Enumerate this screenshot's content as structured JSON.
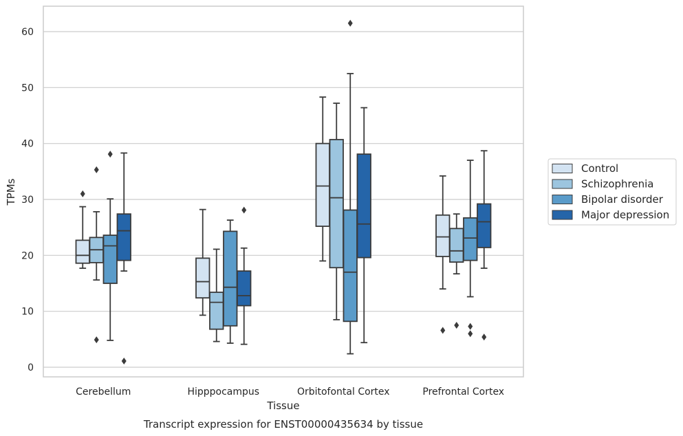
{
  "chart_data": {
    "type": "box",
    "title": "",
    "caption": "Transcript expression for ENST00000435634 by tissue",
    "xlabel": "Tissue",
    "ylabel": "TPMs",
    "ylim": [
      -2,
      65
    ],
    "yticks": [
      0,
      10,
      20,
      30,
      40,
      50,
      60
    ],
    "grid": "horizontal",
    "legend_position": "right",
    "categories": [
      "Cerebellum",
      "Hipppocampus",
      "Orbitofontal Cortex",
      "Prefrontal Cortex"
    ],
    "series": [
      {
        "name": "Control",
        "color": "#d3e3f2",
        "boxes": [
          {
            "whislo": 17.7,
            "q1": 18.6,
            "med": 20.0,
            "q3": 22.7,
            "whishi": 28.7,
            "fliers": [
              31.0
            ]
          },
          {
            "whislo": 9.3,
            "q1": 12.4,
            "med": 15.3,
            "q3": 19.5,
            "whishi": 28.2,
            "fliers": []
          },
          {
            "whislo": 19.0,
            "q1": 25.2,
            "med": 32.4,
            "q3": 40.0,
            "whishi": 48.3,
            "fliers": []
          },
          {
            "whislo": 14.0,
            "q1": 19.8,
            "med": 23.3,
            "q3": 27.2,
            "whishi": 34.2,
            "fliers": [
              6.6
            ]
          }
        ]
      },
      {
        "name": "Schizophrenia",
        "color": "#9cc5df",
        "boxes": [
          {
            "whislo": 15.6,
            "q1": 18.7,
            "med": 21.0,
            "q3": 23.2,
            "whishi": 27.8,
            "fliers": [
              35.3,
              4.9
            ]
          },
          {
            "whislo": 4.6,
            "q1": 6.8,
            "med": 11.6,
            "q3": 13.4,
            "whishi": 21.1,
            "fliers": []
          },
          {
            "whislo": 8.5,
            "q1": 17.8,
            "med": 30.3,
            "q3": 40.7,
            "whishi": 47.2,
            "fliers": []
          },
          {
            "whislo": 16.7,
            "q1": 18.8,
            "med": 20.8,
            "q3": 24.8,
            "whishi": 27.4,
            "fliers": [
              7.5
            ]
          }
        ]
      },
      {
        "name": "Bipolar disorder",
        "color": "#5a9bc9",
        "boxes": [
          {
            "whislo": 4.8,
            "q1": 15.0,
            "med": 21.7,
            "q3": 23.6,
            "whishi": 30.1,
            "fliers": [
              38.1
            ]
          },
          {
            "whislo": 4.3,
            "q1": 7.4,
            "med": 14.3,
            "q3": 24.3,
            "whishi": 26.3,
            "fliers": []
          },
          {
            "whislo": 2.4,
            "q1": 8.2,
            "med": 17.0,
            "q3": 28.1,
            "whishi": 52.5,
            "fliers": [
              61.5
            ]
          },
          {
            "whislo": 12.6,
            "q1": 19.1,
            "med": 23.1,
            "q3": 26.7,
            "whishi": 37.0,
            "fliers": [
              7.3,
              6.0
            ]
          }
        ]
      },
      {
        "name": "Major depression",
        "color": "#2565a9",
        "boxes": [
          {
            "whislo": 17.2,
            "q1": 19.1,
            "med": 24.4,
            "q3": 27.4,
            "whishi": 38.3,
            "fliers": [
              1.1
            ]
          },
          {
            "whislo": 4.1,
            "q1": 11.0,
            "med": 12.8,
            "q3": 17.2,
            "whishi": 21.3,
            "fliers": [
              28.1
            ]
          },
          {
            "whislo": 4.4,
            "q1": 19.6,
            "med": 25.6,
            "q3": 38.1,
            "whishi": 46.4,
            "fliers": []
          },
          {
            "whislo": 17.7,
            "q1": 21.4,
            "med": 26.0,
            "q3": 29.2,
            "whishi": 38.7,
            "fliers": [
              5.4
            ]
          }
        ]
      }
    ]
  }
}
